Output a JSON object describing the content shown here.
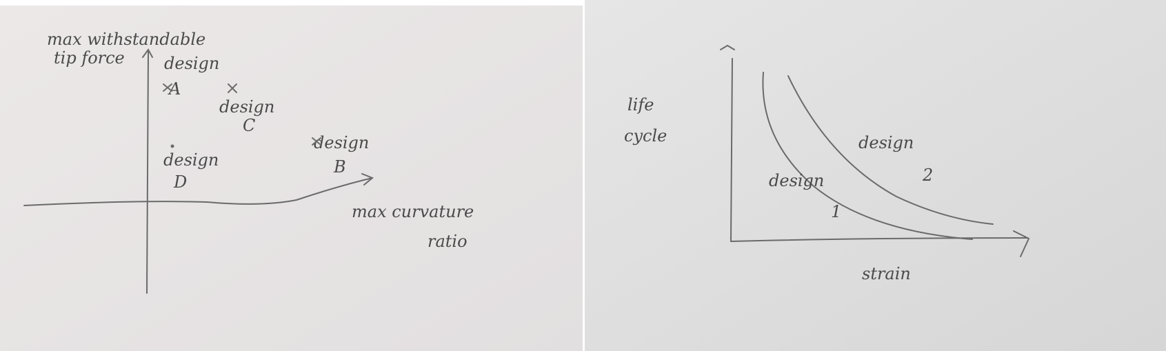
{
  "left_sketch": {
    "y_label": [
      "max withstandable",
      "tip force"
    ],
    "x_label": [
      "max curvature",
      "ratio"
    ],
    "points": [
      {
        "lines": [
          "design",
          "A"
        ]
      },
      {
        "lines": [
          "design",
          "B"
        ]
      },
      {
        "lines": [
          "design",
          "C"
        ]
      },
      {
        "lines": [
          "design",
          "D"
        ]
      }
    ]
  },
  "right_sketch": {
    "y_label": [
      "life",
      "cycle"
    ],
    "x_label": "strain",
    "curves": [
      {
        "lines": [
          "design",
          "1"
        ]
      },
      {
        "lines": [
          "design",
          "2"
        ]
      }
    ]
  }
}
